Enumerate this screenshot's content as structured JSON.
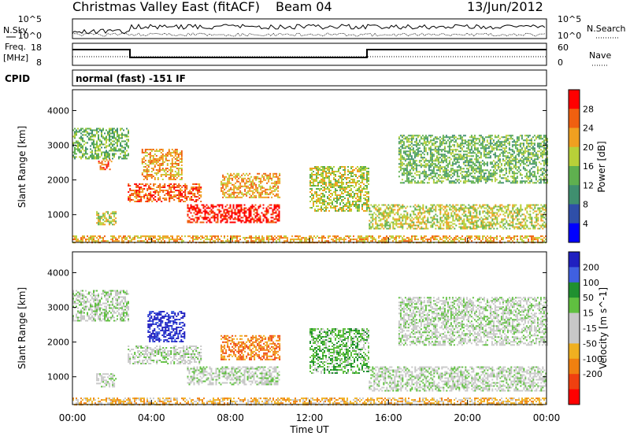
{
  "header": {
    "station": "Christmas Valley East (fitACF)",
    "beam": "Beam 04",
    "date": "13/Jun/2012"
  },
  "nsky_panel": {
    "left_label": "N.Sky",
    "right_label": "N.Search",
    "left_ticks": [
      "10^5",
      "10^0"
    ],
    "right_ticks": [
      "10^5",
      "10^0"
    ]
  },
  "freq_panel": {
    "left_label_line1": "Freq.",
    "left_label_line2": "[MHz]",
    "right_label": "Nave",
    "left_ticks": [
      "18",
      "8"
    ],
    "right_ticks": [
      "60",
      "0"
    ]
  },
  "cpid": {
    "label": "CPID",
    "mode_text": "normal (fast) -151 IF"
  },
  "colors": {
    "power_scale": [
      "#0000ff",
      "#2f4fa8",
      "#3f8f6f",
      "#5fb04f",
      "#b8d038",
      "#f0a020",
      "#f06010",
      "#ff0000"
    ],
    "velocity_scale": [
      "#2020c0",
      "#4060e0",
      "#209030",
      "#60c040",
      "#c8c8c8",
      "#c8c8c8",
      "#f0b020",
      "#f08010",
      "#f04010",
      "#ff0000"
    ]
  },
  "chart_data": [
    {
      "type": "heatmap",
      "panel": "power",
      "ylabel": "Slant Range [km]",
      "yticks": [
        1000,
        2000,
        3000,
        4000
      ],
      "ylim": [
        200,
        4600
      ],
      "xlim": [
        0,
        24
      ],
      "colorbar": {
        "label": "Power [dB]",
        "ticks": [
          "4",
          "8",
          "12",
          "16",
          "20",
          "24",
          "28"
        ],
        "range": [
          0,
          32
        ]
      },
      "echo_regions": [
        {
          "t0": 0.0,
          "t1": 2.8,
          "r0": 2600,
          "r1": 3500,
          "level": 3
        },
        {
          "t0": 1.2,
          "t1": 2.2,
          "r0": 700,
          "r1": 1100,
          "level": 4
        },
        {
          "t0": 1.3,
          "t1": 2.0,
          "r0": 2300,
          "r1": 2600,
          "level": 6
        },
        {
          "t0": 2.8,
          "t1": 6.5,
          "r0": 1400,
          "r1": 1900,
          "level": 6
        },
        {
          "t0": 3.5,
          "t1": 5.5,
          "r0": 2000,
          "r1": 2900,
          "level": 5
        },
        {
          "t0": 5.8,
          "t1": 10.5,
          "r0": 800,
          "r1": 1300,
          "level": 7
        },
        {
          "t0": 7.5,
          "t1": 10.5,
          "r0": 1500,
          "r1": 2200,
          "level": 5
        },
        {
          "t0": 12.0,
          "t1": 15.0,
          "r0": 1100,
          "r1": 2400,
          "level": 4
        },
        {
          "t0": 15.0,
          "t1": 24.0,
          "r0": 600,
          "r1": 1300,
          "level": 4
        },
        {
          "t0": 16.5,
          "t1": 24.0,
          "r0": 1900,
          "r1": 3300,
          "level": 3
        },
        {
          "t0": 0.0,
          "t1": 24.0,
          "r0": 200,
          "r1": 400,
          "level": 5
        }
      ]
    },
    {
      "type": "heatmap",
      "panel": "velocity",
      "xlabel": "Time UT",
      "ylabel": "Slant Range [km]",
      "yticks": [
        1000,
        2000,
        3000,
        4000
      ],
      "ylim": [
        200,
        4600
      ],
      "xlim": [
        0,
        24
      ],
      "xticks": [
        "00:00",
        "04:00",
        "08:00",
        "12:00",
        "16:00",
        "20:00",
        "00:00"
      ],
      "colorbar": {
        "label": "Velocity [m s^-1]",
        "ticks": [
          "200",
          "100",
          "50",
          "15",
          "-15",
          "-50",
          "-100",
          "-200"
        ],
        "range": [
          -250,
          250
        ]
      },
      "echo_regions": [
        {
          "t0": 0.0,
          "t1": 2.8,
          "r0": 2600,
          "r1": 3500,
          "level": 4
        },
        {
          "t0": 1.2,
          "t1": 2.2,
          "r0": 700,
          "r1": 1100,
          "level": 4
        },
        {
          "t0": 2.8,
          "t1": 6.5,
          "r0": 1400,
          "r1": 1900,
          "level": 4
        },
        {
          "t0": 3.8,
          "t1": 5.7,
          "r0": 2000,
          "r1": 2900,
          "level": 0
        },
        {
          "t0": 5.8,
          "t1": 10.5,
          "r0": 800,
          "r1": 1300,
          "level": 4
        },
        {
          "t0": 7.5,
          "t1": 10.5,
          "r0": 1500,
          "r1": 2200,
          "level": 7
        },
        {
          "t0": 12.0,
          "t1": 15.0,
          "r0": 1100,
          "r1": 2400,
          "level": 3
        },
        {
          "t0": 15.0,
          "t1": 24.0,
          "r0": 600,
          "r1": 1300,
          "level": 4
        },
        {
          "t0": 16.5,
          "t1": 24.0,
          "r0": 1900,
          "r1": 3300,
          "level": 4
        },
        {
          "t0": 0.0,
          "t1": 24.0,
          "r0": 200,
          "r1": 400,
          "level": 6
        }
      ]
    }
  ]
}
